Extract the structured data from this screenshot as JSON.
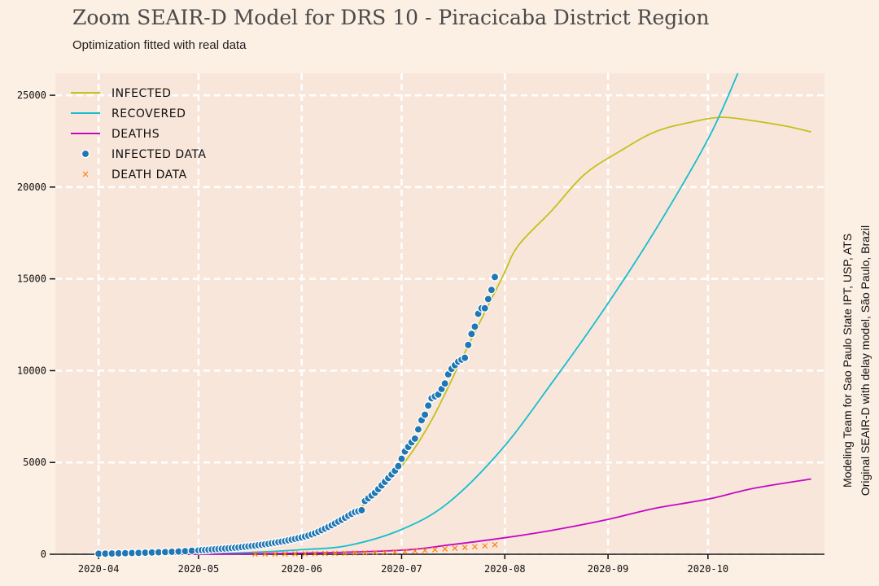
{
  "chart_data": {
    "type": "line",
    "title": "Zoom SEAIR-D Model for DRS 10 - Piracicaba District Region",
    "subtitle": "Optimization fitted with real data",
    "side_note_lines": [
      "Modeling Team for Sao Paulo State IPT, USP, ATS",
      "Original SEAIR-D with delay model, São Paulo, Brazil"
    ],
    "xlabel": "",
    "ylabel": "",
    "x_axis": {
      "type": "date",
      "range": [
        "2020-03-19",
        "2020-11-05"
      ],
      "ticks": [
        "2020-04-01",
        "2020-05-01",
        "2020-06-01",
        "2020-07-01",
        "2020-08-01",
        "2020-09-01",
        "2020-10-01"
      ],
      "tick_labels": [
        "2020-04",
        "2020-05",
        "2020-06",
        "2020-07",
        "2020-08",
        "2020-09",
        "2020-10"
      ]
    },
    "y_axis": {
      "range": [
        0,
        26200
      ],
      "ticks": [
        0,
        5000,
        10000,
        15000,
        20000,
        25000
      ],
      "tick_labels": [
        "0",
        "5000",
        "10000",
        "15000",
        "20000",
        "25000"
      ]
    },
    "grid": true,
    "legend_position": "top-left",
    "series": [
      {
        "name": "INFECTED",
        "kind": "line",
        "color": "#c4c01e",
        "points": [
          [
            "2020-04-01",
            30
          ],
          [
            "2020-04-15",
            80
          ],
          [
            "2020-05-01",
            160
          ],
          [
            "2020-05-15",
            420
          ],
          [
            "2020-06-01",
            1050
          ],
          [
            "2020-06-10",
            1750
          ],
          [
            "2020-06-20",
            2750
          ],
          [
            "2020-07-01",
            4800
          ],
          [
            "2020-07-10",
            7300
          ],
          [
            "2020-07-20",
            11000
          ],
          [
            "2020-07-31",
            15000
          ],
          [
            "2020-08-05",
            16800
          ],
          [
            "2020-08-15",
            18700
          ],
          [
            "2020-08-25",
            20700
          ],
          [
            "2020-09-05",
            22000
          ],
          [
            "2020-09-15",
            23000
          ],
          [
            "2020-09-25",
            23500
          ],
          [
            "2020-10-05",
            23800
          ],
          [
            "2020-10-15",
            23600
          ],
          [
            "2020-10-25",
            23300
          ],
          [
            "2020-11-01",
            23000
          ]
        ]
      },
      {
        "name": "RECOVERED",
        "kind": "line",
        "color": "#17becf",
        "points": [
          [
            "2020-04-01",
            0
          ],
          [
            "2020-05-01",
            30
          ],
          [
            "2020-05-15",
            80
          ],
          [
            "2020-06-01",
            250
          ],
          [
            "2020-06-15",
            480
          ],
          [
            "2020-07-01",
            1350
          ],
          [
            "2020-07-15",
            2800
          ],
          [
            "2020-07-31",
            5700
          ],
          [
            "2020-08-15",
            9300
          ],
          [
            "2020-08-31",
            13400
          ],
          [
            "2020-09-15",
            17600
          ],
          [
            "2020-10-01",
            22600
          ],
          [
            "2020-10-10",
            26200
          ]
        ]
      },
      {
        "name": "DEATHS",
        "kind": "line",
        "color": "#c30ac3",
        "points": [
          [
            "2020-04-01",
            0
          ],
          [
            "2020-05-01",
            10
          ],
          [
            "2020-06-01",
            60
          ],
          [
            "2020-07-01",
            220
          ],
          [
            "2020-07-15",
            500
          ],
          [
            "2020-08-01",
            900
          ],
          [
            "2020-08-15",
            1300
          ],
          [
            "2020-09-01",
            1900
          ],
          [
            "2020-09-15",
            2500
          ],
          [
            "2020-10-01",
            3000
          ],
          [
            "2020-10-15",
            3600
          ],
          [
            "2020-11-01",
            4100
          ]
        ]
      },
      {
        "name": "INFECTED DATA",
        "kind": "scatter",
        "marker": "circle",
        "color": "#1f77b4",
        "points": [
          [
            "2020-04-01",
            30
          ],
          [
            "2020-04-03",
            35
          ],
          [
            "2020-04-05",
            42
          ],
          [
            "2020-04-07",
            50
          ],
          [
            "2020-04-09",
            58
          ],
          [
            "2020-04-11",
            66
          ],
          [
            "2020-04-13",
            75
          ],
          [
            "2020-04-15",
            85
          ],
          [
            "2020-04-17",
            96
          ],
          [
            "2020-04-19",
            108
          ],
          [
            "2020-04-21",
            120
          ],
          [
            "2020-04-23",
            135
          ],
          [
            "2020-04-25",
            150
          ],
          [
            "2020-04-27",
            170
          ],
          [
            "2020-04-29",
            190
          ],
          [
            "2020-05-01",
            210
          ],
          [
            "2020-05-02",
            225
          ],
          [
            "2020-05-03",
            235
          ],
          [
            "2020-05-04",
            245
          ],
          [
            "2020-05-05",
            260
          ],
          [
            "2020-05-06",
            275
          ],
          [
            "2020-05-07",
            285
          ],
          [
            "2020-05-08",
            300
          ],
          [
            "2020-05-09",
            310
          ],
          [
            "2020-05-10",
            325
          ],
          [
            "2020-05-11",
            340
          ],
          [
            "2020-05-12",
            355
          ],
          [
            "2020-05-13",
            370
          ],
          [
            "2020-05-14",
            390
          ],
          [
            "2020-05-15",
            410
          ],
          [
            "2020-05-16",
            430
          ],
          [
            "2020-05-17",
            450
          ],
          [
            "2020-05-18",
            470
          ],
          [
            "2020-05-19",
            495
          ],
          [
            "2020-05-20",
            520
          ],
          [
            "2020-05-21",
            545
          ],
          [
            "2020-05-22",
            570
          ],
          [
            "2020-05-23",
            600
          ],
          [
            "2020-05-24",
            630
          ],
          [
            "2020-05-25",
            660
          ],
          [
            "2020-05-26",
            690
          ],
          [
            "2020-05-27",
            720
          ],
          [
            "2020-05-28",
            760
          ],
          [
            "2020-05-29",
            800
          ],
          [
            "2020-05-30",
            840
          ],
          [
            "2020-05-31",
            880
          ],
          [
            "2020-06-01",
            920
          ],
          [
            "2020-06-02",
            970
          ],
          [
            "2020-06-03",
            1020
          ],
          [
            "2020-06-04",
            1080
          ],
          [
            "2020-06-05",
            1150
          ],
          [
            "2020-06-06",
            1230
          ],
          [
            "2020-06-07",
            1310
          ],
          [
            "2020-06-08",
            1400
          ],
          [
            "2020-06-09",
            1490
          ],
          [
            "2020-06-10",
            1580
          ],
          [
            "2020-06-11",
            1680
          ],
          [
            "2020-06-12",
            1780
          ],
          [
            "2020-06-13",
            1880
          ],
          [
            "2020-06-14",
            1990
          ],
          [
            "2020-06-15",
            2100
          ],
          [
            "2020-06-16",
            2200
          ],
          [
            "2020-06-17",
            2300
          ],
          [
            "2020-06-18",
            2350
          ],
          [
            "2020-06-19",
            2400
          ],
          [
            "2020-06-20",
            2900
          ],
          [
            "2020-06-21",
            3050
          ],
          [
            "2020-06-22",
            3200
          ],
          [
            "2020-06-23",
            3350
          ],
          [
            "2020-06-24",
            3550
          ],
          [
            "2020-06-25",
            3750
          ],
          [
            "2020-06-26",
            3950
          ],
          [
            "2020-06-27",
            4150
          ],
          [
            "2020-06-28",
            4350
          ],
          [
            "2020-06-29",
            4550
          ],
          [
            "2020-06-30",
            4800
          ],
          [
            "2020-07-01",
            5200
          ],
          [
            "2020-07-02",
            5600
          ],
          [
            "2020-07-03",
            5850
          ],
          [
            "2020-07-04",
            6100
          ],
          [
            "2020-07-05",
            6300
          ],
          [
            "2020-07-06",
            6800
          ],
          [
            "2020-07-07",
            7300
          ],
          [
            "2020-07-08",
            7600
          ],
          [
            "2020-07-09",
            8100
          ],
          [
            "2020-07-10",
            8500
          ],
          [
            "2020-07-11",
            8600
          ],
          [
            "2020-07-12",
            8700
          ],
          [
            "2020-07-13",
            9000
          ],
          [
            "2020-07-14",
            9300
          ],
          [
            "2020-07-15",
            9800
          ],
          [
            "2020-07-16",
            10100
          ],
          [
            "2020-07-17",
            10300
          ],
          [
            "2020-07-18",
            10500
          ],
          [
            "2020-07-19",
            10600
          ],
          [
            "2020-07-20",
            10700
          ],
          [
            "2020-07-21",
            11400
          ],
          [
            "2020-07-22",
            12000
          ],
          [
            "2020-07-23",
            12400
          ],
          [
            "2020-07-24",
            13100
          ],
          [
            "2020-07-25",
            13400
          ],
          [
            "2020-07-26",
            13400
          ],
          [
            "2020-07-27",
            13900
          ],
          [
            "2020-07-28",
            14400
          ],
          [
            "2020-07-29",
            15100
          ]
        ]
      },
      {
        "name": "DEATH DATA",
        "kind": "scatter",
        "marker": "x",
        "color": "#ff7f0e",
        "points": [
          [
            "2020-05-18",
            12
          ],
          [
            "2020-05-21",
            14
          ],
          [
            "2020-05-24",
            16
          ],
          [
            "2020-05-27",
            20
          ],
          [
            "2020-05-30",
            24
          ],
          [
            "2020-06-02",
            28
          ],
          [
            "2020-06-05",
            33
          ],
          [
            "2020-06-08",
            40
          ],
          [
            "2020-06-11",
            48
          ],
          [
            "2020-06-14",
            56
          ],
          [
            "2020-06-17",
            66
          ],
          [
            "2020-06-20",
            78
          ],
          [
            "2020-06-23",
            90
          ],
          [
            "2020-06-26",
            105
          ],
          [
            "2020-06-29",
            125
          ],
          [
            "2020-07-02",
            150
          ],
          [
            "2020-07-05",
            180
          ],
          [
            "2020-07-08",
            210
          ],
          [
            "2020-07-11",
            250
          ],
          [
            "2020-07-14",
            290
          ],
          [
            "2020-07-17",
            330
          ],
          [
            "2020-07-20",
            370
          ],
          [
            "2020-07-23",
            410
          ],
          [
            "2020-07-26",
            460
          ],
          [
            "2020-07-29",
            520
          ]
        ]
      }
    ]
  }
}
